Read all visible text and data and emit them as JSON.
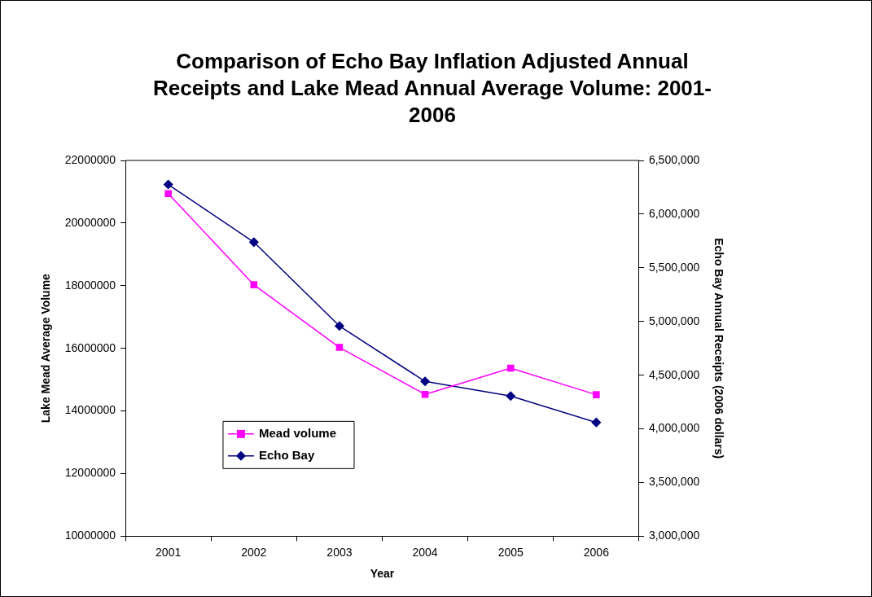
{
  "chart_data": {
    "type": "line",
    "title": "Comparison of Echo Bay Inflation Adjusted Annual Receipts and Lake Mead Annual Average Volume: 2001-2006",
    "xlabel": "Year",
    "ylabel": "Lake Mead Average Volume",
    "y2label": "Echo Bay Annual Receipts (2006 dollars)",
    "categories": [
      "2001",
      "2002",
      "2003",
      "2004",
      "2005",
      "2006"
    ],
    "series": [
      {
        "name": "Mead volume",
        "color": "#ff00ff",
        "marker": "square",
        "values": [
          20940000,
          18030000,
          16030000,
          14530000,
          15370000,
          14520000
        ]
      },
      {
        "name": "Echo Bay",
        "color": "#000080",
        "marker": "diamond",
        "axis": "y2",
        "values": [
          6276000,
          5739000,
          4958000,
          4442000,
          4306000,
          4060000
        ]
      }
    ],
    "ylim": [
      10000000,
      22000000
    ],
    "yticks": [
      10000000,
      12000000,
      14000000,
      16000000,
      18000000,
      20000000,
      22000000
    ],
    "y2lim": [
      3000000,
      6500000
    ],
    "y2ticks": [
      {
        "value": 3000000,
        "label": "3,000,000"
      },
      {
        "value": 3500000,
        "label": "3,500,000"
      },
      {
        "value": 4000000,
        "label": "4,000,000"
      },
      {
        "value": 4500000,
        "label": "4,500,000"
      },
      {
        "value": 5000000,
        "label": "5,000,000"
      },
      {
        "value": 5500000,
        "label": "5,500,000"
      },
      {
        "value": 6000000,
        "label": "6,000,000"
      },
      {
        "value": 6500000,
        "label": "6,500,000"
      }
    ],
    "grid": false,
    "legend": "bottom left",
    "line_style": "solid"
  }
}
